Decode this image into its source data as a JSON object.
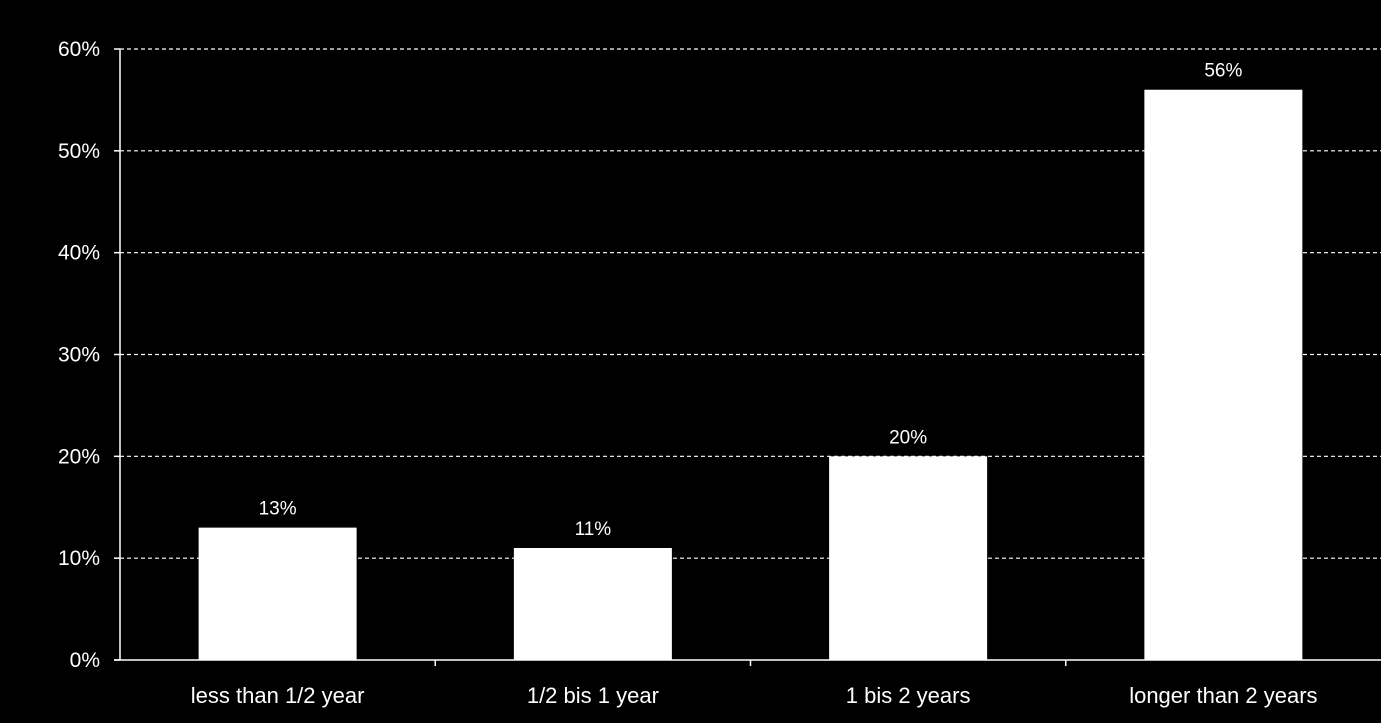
{
  "chart_data": {
    "type": "bar",
    "categories": [
      "less than 1/2 year",
      "1/2 bis 1 year",
      "1 bis 2 years",
      "longer than 2 years"
    ],
    "values": [
      13,
      11,
      20,
      56
    ],
    "data_labels": [
      "13%",
      "11%",
      "20%",
      "56%"
    ],
    "ylim": [
      0,
      60
    ],
    "yticks": [
      0,
      10,
      20,
      30,
      40,
      50,
      60
    ],
    "ytick_labels": [
      "0%",
      "10%",
      "20%",
      "30%",
      "40%",
      "50%",
      "60%"
    ],
    "title": "",
    "xlabel": "",
    "ylabel": "",
    "grid": true,
    "grid_style": "dashed",
    "legend": false
  },
  "colors": {
    "background": "#000000",
    "bar": "#ffffff",
    "axis": "#ffffff",
    "grid": "#ffffff",
    "text": "#ffffff"
  }
}
